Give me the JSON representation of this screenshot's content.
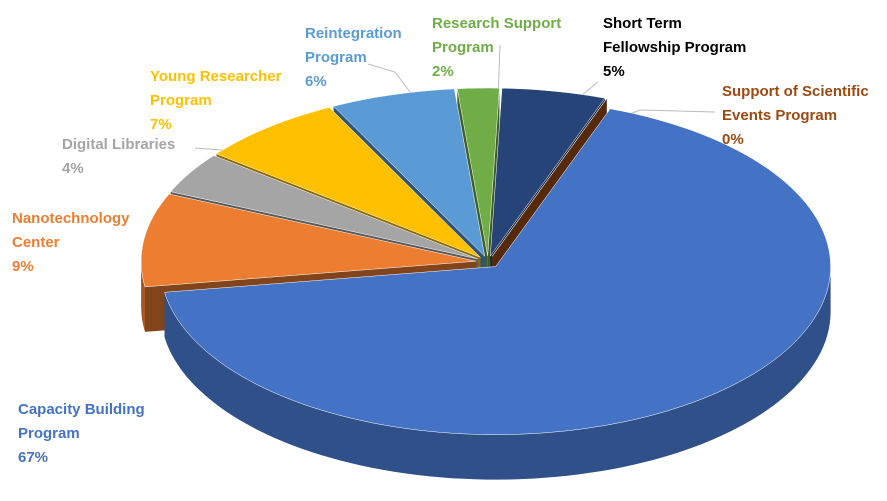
{
  "chart_data": {
    "type": "pie",
    "categories": [
      "Support of Scientific Events Program",
      "Capacity Building Program",
      "Nanotechnology Center",
      "Digital Libraries",
      "Young Researcher Program",
      "Reintegration Program",
      "Research Support Program",
      "Short Term Fellowship Program"
    ],
    "values": [
      0,
      67,
      9,
      4,
      7,
      6,
      2,
      5
    ],
    "value_labels": [
      "0%",
      "67%",
      "9%",
      "4%",
      "7%",
      "6%",
      "2%",
      "5%"
    ],
    "colors": [
      "#9c4a10",
      "#4472c4",
      "#ed7d31",
      "#a5a5a5",
      "#ffc000",
      "#5b9bd5",
      "#70ad47",
      "#264478"
    ],
    "label_colors": [
      "#9c4a10",
      "#4472c4",
      "#ed7d31",
      "#a5a5a5",
      "#ffc000",
      "#5b9bd5",
      "#70ad47",
      "#000000"
    ]
  }
}
